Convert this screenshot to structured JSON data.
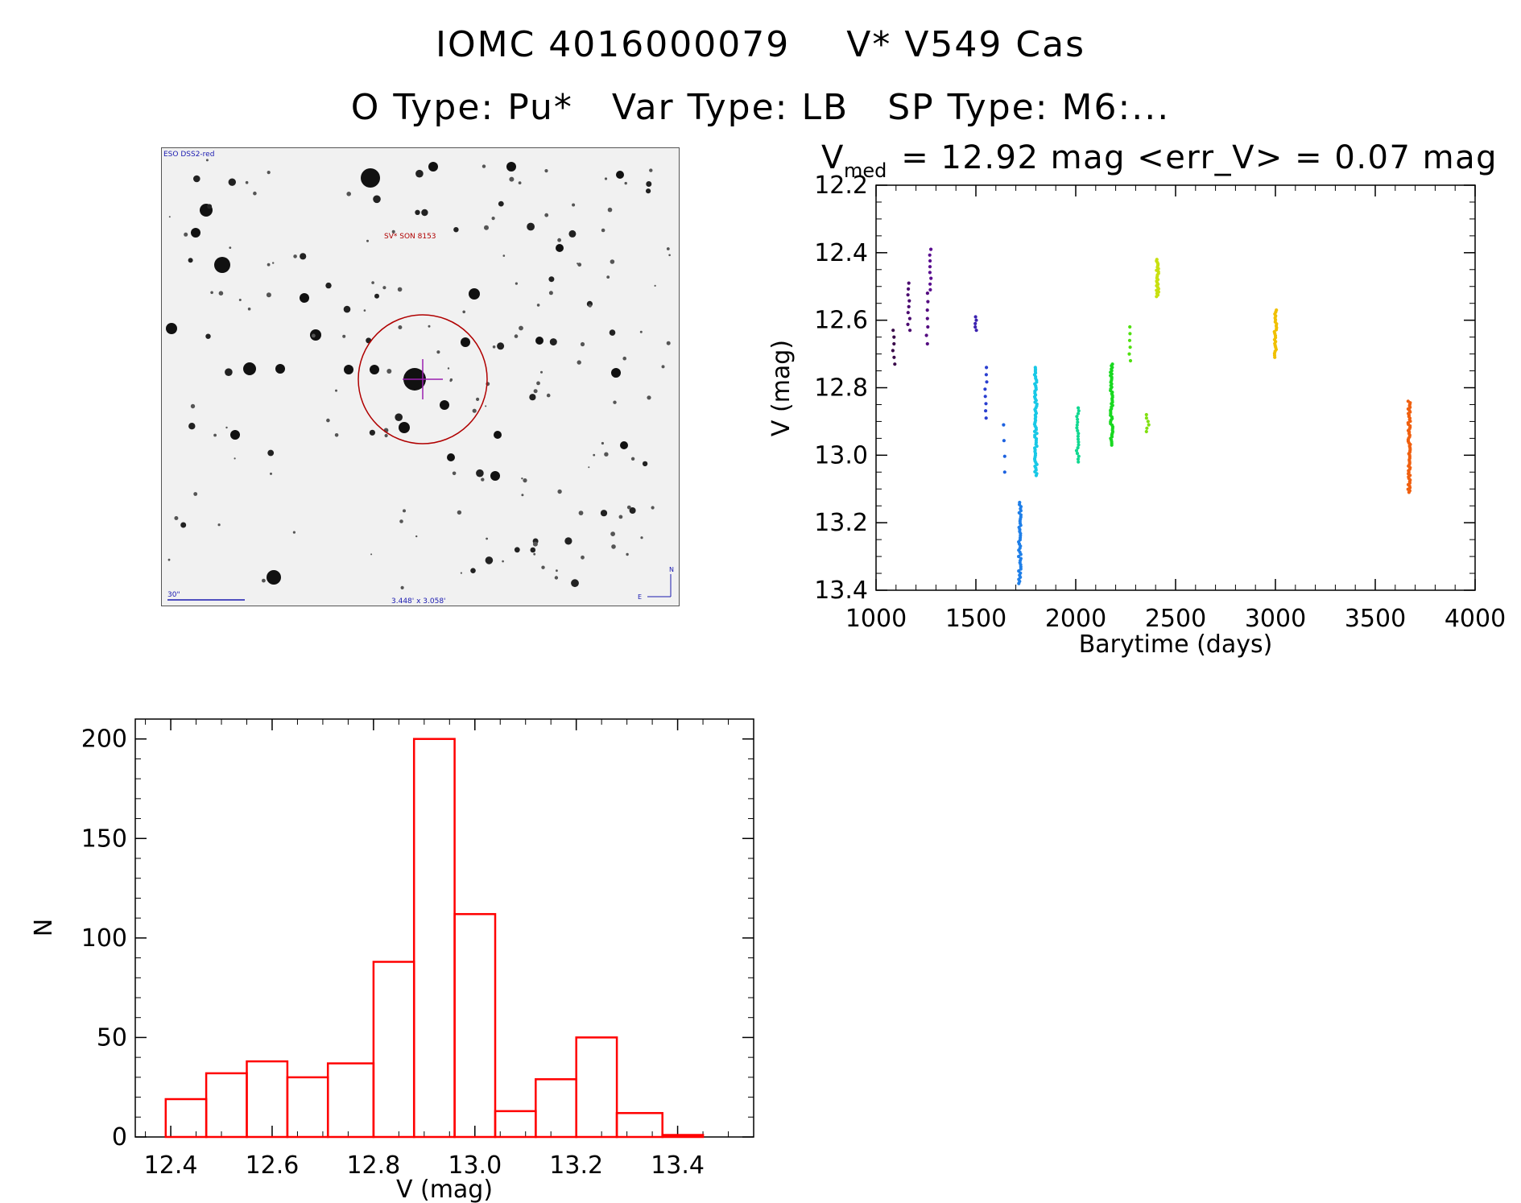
{
  "header": {
    "object_id": "IOMC 4016000079",
    "object_name": "V* V549 Cas",
    "otype": "O Type: Pu*",
    "vartype": "Var Type: LB",
    "sptype": "SP Type: M6:..."
  },
  "finder": {
    "survey_label": "ESO DSS2-red",
    "target_label": "SV* SON 8153",
    "scale_label": "30\"",
    "fov_label": "3.448' x 3.058'",
    "north_label": "N",
    "east_label": "E"
  },
  "colors": {
    "axes": "#000000",
    "histogram": "#ff0000",
    "circle": "#b00000",
    "crosshair": "#9b1fb0"
  },
  "chart_data": [
    {
      "type": "scatter",
      "title_main": "V",
      "title_sub": "med",
      "title_rest": " = 12.92 mag <err_V> = 0.07 mag",
      "xlabel": "Barytime (days)",
      "ylabel": "V (mag)",
      "xlim": [
        1000,
        4000
      ],
      "ylim": [
        13.4,
        12.2
      ],
      "y_inverted": true,
      "xticks": [
        1000,
        1500,
        2000,
        2500,
        3000,
        3500,
        4000
      ],
      "yticks": [
        12.2,
        12.4,
        12.6,
        12.8,
        13.0,
        13.2,
        13.4
      ],
      "groups": [
        {
          "x": 1090,
          "ymin": 12.63,
          "ymax": 12.73,
          "n": 6,
          "color": "#3a0a4a"
        },
        {
          "x": 1165,
          "ymin": 12.49,
          "ymax": 12.63,
          "n": 9,
          "color": "#4b0a70"
        },
        {
          "x": 1255,
          "ymin": 12.52,
          "ymax": 12.67,
          "n": 7,
          "color": "#540b80"
        },
        {
          "x": 1275,
          "ymin": 12.39,
          "ymax": 12.51,
          "n": 8,
          "color": "#5a0d90"
        },
        {
          "x": 1500,
          "ymin": 12.59,
          "ymax": 12.63,
          "n": 5,
          "color": "#3b22b0"
        },
        {
          "x": 1550,
          "ymin": 12.74,
          "ymax": 12.89,
          "n": 8,
          "color": "#2a3fd0"
        },
        {
          "x": 1640,
          "ymin": 12.91,
          "ymax": 13.05,
          "n": 4,
          "color": "#1d62e0"
        },
        {
          "x": 1720,
          "ymin": 13.14,
          "ymax": 13.38,
          "n": 40,
          "color": "#1f7fe8"
        },
        {
          "x": 1800,
          "ymin": 12.74,
          "ymax": 13.06,
          "n": 60,
          "color": "#18c8e6"
        },
        {
          "x": 2010,
          "ymin": 12.86,
          "ymax": 13.02,
          "n": 20,
          "color": "#10d890"
        },
        {
          "x": 2180,
          "ymin": 12.73,
          "ymax": 12.97,
          "n": 50,
          "color": "#18d820"
        },
        {
          "x": 2270,
          "ymin": 12.62,
          "ymax": 12.72,
          "n": 6,
          "color": "#50e010"
        },
        {
          "x": 2360,
          "ymin": 12.88,
          "ymax": 12.93,
          "n": 6,
          "color": "#80e010"
        },
        {
          "x": 2410,
          "ymin": 12.42,
          "ymax": 12.53,
          "n": 25,
          "color": "#c8e010"
        },
        {
          "x": 3000,
          "ymin": 12.57,
          "ymax": 12.71,
          "n": 25,
          "color": "#f0c000"
        },
        {
          "x": 3670,
          "ymin": 12.84,
          "ymax": 13.11,
          "n": 60,
          "color": "#f06010"
        }
      ]
    },
    {
      "type": "bar",
      "xlabel": "V (mag)",
      "ylabel": "N",
      "xlim": [
        12.33,
        13.55
      ],
      "ylim": [
        0,
        210
      ],
      "xticks": [
        12.4,
        12.6,
        12.8,
        13.0,
        13.2,
        13.4
      ],
      "yticks": [
        0,
        50,
        100,
        150,
        200
      ],
      "bin_edges": [
        12.39,
        12.47,
        12.55,
        12.63,
        12.71,
        12.8,
        12.88,
        12.96,
        13.04,
        13.12,
        13.2,
        13.28,
        13.37,
        13.45
      ],
      "values": [
        19,
        32,
        38,
        30,
        37,
        88,
        200,
        112,
        13,
        29,
        50,
        12,
        1
      ]
    }
  ]
}
